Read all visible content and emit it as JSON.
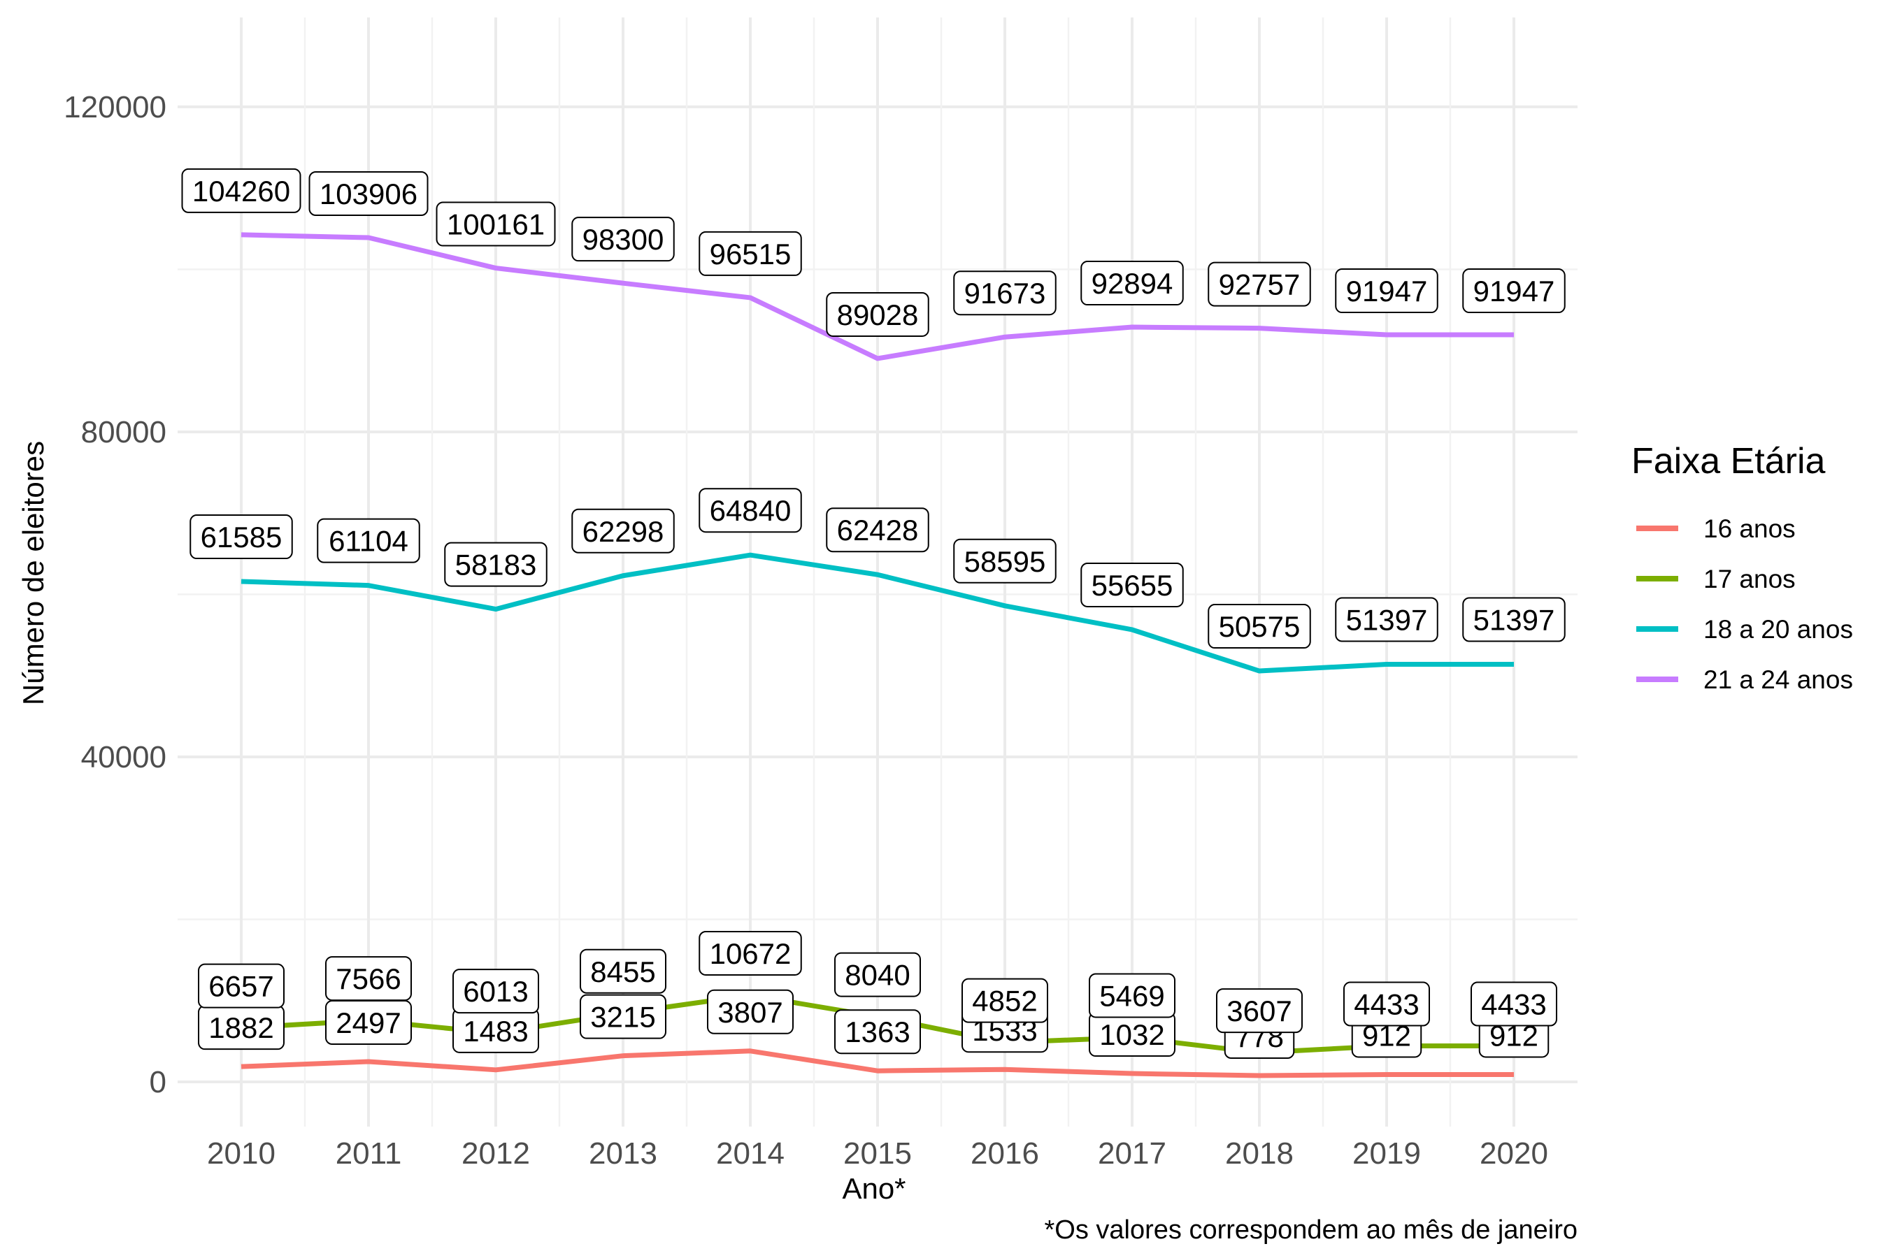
{
  "chart_data": {
    "type": "line",
    "x": [
      2010,
      2011,
      2012,
      2013,
      2014,
      2015,
      2016,
      2017,
      2018,
      2019,
      2020
    ],
    "xlabel": "Ano*",
    "ylabel": "Número de eleitores",
    "ylim": [
      -5500,
      131000
    ],
    "y_ticks": [
      0,
      40000,
      80000,
      120000
    ],
    "grid": true,
    "caption": "*Os valores correspondem ao mês de janeiro",
    "legend": {
      "title": "Faixa Etária",
      "position": "right"
    },
    "series": [
      {
        "name": "16 anos",
        "color": "#F8766D",
        "values": [
          1882,
          2497,
          1483,
          3215,
          3807,
          1363,
          1533,
          1032,
          778,
          912,
          912
        ]
      },
      {
        "name": "17 anos",
        "color": "#7CAE00",
        "values": [
          6657,
          7566,
          6013,
          8455,
          10672,
          8040,
          4852,
          5469,
          3607,
          4433,
          4433
        ]
      },
      {
        "name": "18 a 20 anos",
        "color": "#00BFC4",
        "values": [
          61585,
          61104,
          58183,
          62298,
          64840,
          62428,
          58595,
          55655,
          50575,
          51397,
          51397
        ]
      },
      {
        "name": "21 a 24 anos",
        "color": "#C77CFF",
        "values": [
          104260,
          103906,
          100161,
          98300,
          96515,
          89028,
          91673,
          92894,
          92757,
          91947,
          91947
        ]
      }
    ]
  }
}
